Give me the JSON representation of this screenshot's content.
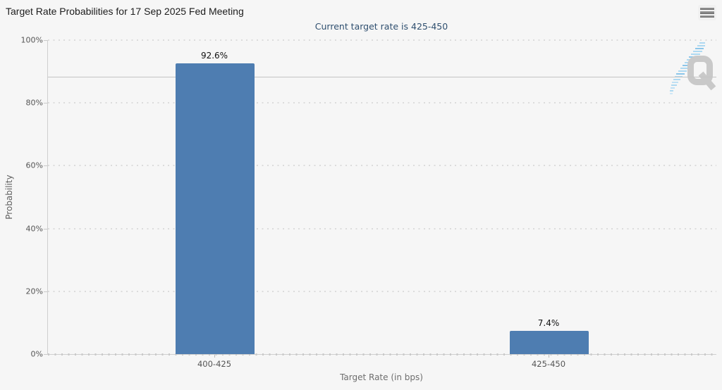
{
  "header": {
    "title": "Target Rate Probabilities for 17 Sep 2025 Fed Meeting",
    "menu_icon": "hamburger-icon"
  },
  "chart_data": {
    "type": "bar",
    "title": "Target Rate Probabilities for 17 Sep 2025 Fed Meeting",
    "subtitle": "Current target rate is 425-450",
    "categories": [
      "400-425",
      "425-450"
    ],
    "values": [
      92.6,
      7.4
    ],
    "data_labels": [
      "92.6%",
      "7.4%"
    ],
    "xlabel": "Target Rate (in bps)",
    "ylabel": "Probability",
    "ylim": [
      0,
      100
    ],
    "ytick_step": 20,
    "ytick_labels": [
      "0%",
      "20%",
      "40%",
      "60%",
      "80%",
      "100%"
    ],
    "grid": "dotted-horizontal-major",
    "legend": "none",
    "reference_line_percent": 88.4,
    "bar_color": "#4e7db1"
  },
  "watermark": {
    "name": "quikstrike-logo",
    "letter": "Q"
  },
  "colors": {
    "background": "#f6f6f6",
    "bar": "#4e7db1",
    "subtitle": "#2f4f6f",
    "axis_line": "#cfcfcf",
    "grid_dot": "#dcdcdc",
    "reference_line": "#c4c4c4",
    "flash_blue": "#acd7f0"
  }
}
